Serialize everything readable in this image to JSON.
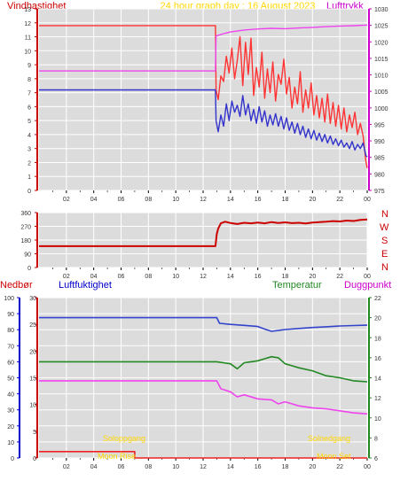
{
  "header": {
    "left": "Vindhastighet",
    "center": "24 hour graph day : 16 August 2023",
    "right": "Lufttrykk"
  },
  "compass_labels": [
    "N",
    "W",
    "S",
    "E",
    "N"
  ],
  "panel3_headers": {
    "nedbor": "Nedbør",
    "luftfuktighet": "Luftfuktighet",
    "temperatur": "Temperatur",
    "duggpunkt": "Duggpunkt"
  },
  "astro": {
    "sunrise_label": "Soloppgang",
    "moonrise_label": "Moon Rise",
    "sunset_label": "Solnedgang",
    "moonset_label": "Moon Set"
  },
  "colors": {
    "background": "#ffffff",
    "panel_bg": "#dcdcdc",
    "header_red": "#cc0000",
    "header_yellow": "#ffd700",
    "header_magenta": "#cc00cc",
    "wind_gust": "#ff3333",
    "wind_avg": "#3333cc",
    "pressure": "#ee44ee",
    "direction": "#cc0000",
    "humidity": "#3344cc",
    "temperature": "#228822",
    "dewpoint": "#ee44ee",
    "rain": "#ee2222",
    "left_axis_wind": "#cc0000",
    "right_axis_pressure": "#cc00cc",
    "rain_axis": "#0000cc",
    "humidity_axis": "#cc0000",
    "temp_axis": "#228822"
  },
  "chart_data": [
    {
      "id": "wind_pressure",
      "type": "line",
      "x_ticks": [
        "02",
        "04",
        "06",
        "08",
        "10",
        "12",
        "14",
        "16",
        "18",
        "20",
        "22",
        "00"
      ],
      "xlim": [
        0,
        24
      ],
      "ylim_left": [
        0,
        13
      ],
      "yticks_left": [
        0,
        1,
        2,
        3,
        4,
        5,
        6,
        7,
        8,
        9,
        10,
        11,
        12,
        13
      ],
      "ylim_right": [
        975,
        1030
      ],
      "yticks_right": [
        975,
        980,
        985,
        990,
        995,
        1000,
        1005,
        1010,
        1015,
        1020,
        1025,
        1030
      ],
      "series": [
        {
          "key": "gust",
          "axis": "left",
          "points": [
            [
              0,
              11.8
            ],
            [
              12.9,
              11.8
            ],
            [
              12.95,
              7.2
            ],
            [
              13.1,
              6.5
            ],
            [
              13.3,
              8.2
            ],
            [
              13.5,
              7.8
            ],
            [
              13.7,
              9.6
            ],
            [
              13.9,
              8.4
            ],
            [
              14.1,
              10.2
            ],
            [
              14.3,
              8.0
            ],
            [
              14.5,
              9.3
            ],
            [
              14.7,
              11.0
            ],
            [
              14.9,
              7.5
            ],
            [
              15.1,
              10.6
            ],
            [
              15.3,
              8.3
            ],
            [
              15.5,
              10.9
            ],
            [
              15.7,
              6.8
            ],
            [
              15.9,
              8.8
            ],
            [
              16.1,
              7.4
            ],
            [
              16.3,
              9.9
            ],
            [
              16.5,
              6.6
            ],
            [
              16.7,
              8.7
            ],
            [
              16.9,
              7.0
            ],
            [
              17.1,
              9.2
            ],
            [
              17.3,
              6.4
            ],
            [
              17.5,
              8.3
            ],
            [
              17.7,
              7.6
            ],
            [
              17.9,
              9.4
            ],
            [
              18.1,
              6.9
            ],
            [
              18.3,
              8.1
            ],
            [
              18.5,
              5.9
            ],
            [
              18.7,
              7.4
            ],
            [
              18.9,
              6.2
            ],
            [
              19.1,
              8.5
            ],
            [
              19.3,
              5.6
            ],
            [
              19.5,
              7.2
            ],
            [
              19.7,
              5.9
            ],
            [
              19.9,
              7.7
            ],
            [
              20.1,
              5.4
            ],
            [
              20.3,
              6.8
            ],
            [
              20.5,
              5.2
            ],
            [
              20.7,
              6.6
            ],
            [
              20.9,
              4.9
            ],
            [
              21.1,
              6.9
            ],
            [
              21.3,
              4.8
            ],
            [
              21.5,
              6.3
            ],
            [
              21.7,
              4.6
            ],
            [
              21.9,
              6.1
            ],
            [
              22.1,
              4.4
            ],
            [
              22.3,
              5.9
            ],
            [
              22.5,
              4.2
            ],
            [
              22.7,
              5.4
            ],
            [
              22.9,
              4.5
            ],
            [
              23.1,
              5.6
            ],
            [
              23.3,
              4.0
            ],
            [
              23.5,
              4.8
            ],
            [
              23.7,
              3.9
            ],
            [
              23.9,
              2.1
            ],
            [
              24,
              1.6
            ]
          ]
        },
        {
          "key": "average",
          "axis": "left",
          "points": [
            [
              0,
              7.2
            ],
            [
              12.9,
              7.2
            ],
            [
              12.95,
              5.0
            ],
            [
              13.1,
              4.2
            ],
            [
              13.3,
              5.4
            ],
            [
              13.5,
              4.6
            ],
            [
              13.7,
              6.2
            ],
            [
              13.9,
              5.0
            ],
            [
              14.1,
              6.4
            ],
            [
              14.3,
              5.6
            ],
            [
              14.5,
              6.1
            ],
            [
              14.7,
              5.3
            ],
            [
              14.9,
              6.8
            ],
            [
              15.1,
              5.4
            ],
            [
              15.3,
              6.2
            ],
            [
              15.5,
              5.0
            ],
            [
              15.7,
              5.8
            ],
            [
              15.9,
              4.8
            ],
            [
              16.1,
              6.0
            ],
            [
              16.3,
              4.9
            ],
            [
              16.5,
              5.7
            ],
            [
              16.7,
              4.6
            ],
            [
              16.9,
              5.4
            ],
            [
              17.1,
              4.7
            ],
            [
              17.3,
              5.5
            ],
            [
              17.5,
              4.6
            ],
            [
              17.7,
              5.3
            ],
            [
              17.9,
              4.4
            ],
            [
              18.1,
              5.2
            ],
            [
              18.3,
              4.3
            ],
            [
              18.5,
              4.9
            ],
            [
              18.7,
              4.1
            ],
            [
              18.9,
              4.8
            ],
            [
              19.1,
              4.0
            ],
            [
              19.3,
              4.6
            ],
            [
              19.5,
              3.8
            ],
            [
              19.7,
              4.4
            ],
            [
              19.9,
              3.7
            ],
            [
              20.1,
              4.3
            ],
            [
              20.3,
              3.6
            ],
            [
              20.5,
              4.1
            ],
            [
              20.7,
              3.5
            ],
            [
              20.9,
              4.0
            ],
            [
              21.1,
              3.4
            ],
            [
              21.3,
              3.9
            ],
            [
              21.5,
              3.3
            ],
            [
              21.7,
              3.7
            ],
            [
              21.9,
              3.2
            ],
            [
              22.1,
              3.6
            ],
            [
              22.3,
              3.1
            ],
            [
              22.5,
              3.4
            ],
            [
              22.7,
              3.0
            ],
            [
              22.9,
              3.5
            ],
            [
              23.1,
              2.9
            ],
            [
              23.3,
              3.3
            ],
            [
              23.5,
              3.0
            ],
            [
              23.7,
              3.4
            ],
            [
              23.9,
              2.5
            ],
            [
              24,
              2.4
            ]
          ]
        },
        {
          "key": "pressure",
          "axis": "right",
          "points": [
            [
              0,
              1011.2
            ],
            [
              12.9,
              1011.2
            ],
            [
              12.95,
              1021.8
            ],
            [
              13.5,
              1022.5
            ],
            [
              14.0,
              1023.0
            ],
            [
              15.0,
              1023.6
            ],
            [
              16.0,
              1023.9
            ],
            [
              17.0,
              1024.1
            ],
            [
              18.0,
              1024.0
            ],
            [
              19.0,
              1024.2
            ],
            [
              20.0,
              1024.4
            ],
            [
              21.0,
              1024.6
            ],
            [
              22.0,
              1024.8
            ],
            [
              23.0,
              1024.9
            ],
            [
              24,
              1025.1
            ]
          ]
        }
      ]
    },
    {
      "id": "wind_direction",
      "type": "scatter",
      "x_ticks": [
        "02",
        "04",
        "06",
        "08",
        "10",
        "12",
        "14",
        "16",
        "18",
        "20",
        "22",
        "00"
      ],
      "xlim": [
        0,
        24
      ],
      "ylim": [
        0,
        360
      ],
      "yticks": [
        0,
        90,
        180,
        270,
        360
      ],
      "series": [
        {
          "key": "direction",
          "points": [
            [
              0,
              140
            ],
            [
              12.9,
              140
            ],
            [
              13.0,
              220
            ],
            [
              13.1,
              255
            ],
            [
              13.3,
              290
            ],
            [
              13.6,
              300
            ],
            [
              14.0,
              292
            ],
            [
              14.5,
              285
            ],
            [
              15.0,
              293
            ],
            [
              15.5,
              290
            ],
            [
              16.0,
              295
            ],
            [
              16.5,
              290
            ],
            [
              17.0,
              298
            ],
            [
              17.5,
              292
            ],
            [
              18.0,
              296
            ],
            [
              18.5,
              291
            ],
            [
              19.0,
              293
            ],
            [
              19.5,
              289
            ],
            [
              20.0,
              295
            ],
            [
              20.5,
              298
            ],
            [
              21.0,
              300
            ],
            [
              21.5,
              304
            ],
            [
              22.0,
              302
            ],
            [
              22.5,
              308
            ],
            [
              23.0,
              305
            ],
            [
              23.5,
              312
            ],
            [
              24,
              315
            ]
          ]
        }
      ]
    },
    {
      "id": "humidity_temp_dew_rain",
      "type": "line",
      "x_ticks": [
        "02",
        "04",
        "06",
        "08",
        "10",
        "12",
        "14",
        "16",
        "18",
        "20",
        "22",
        "00"
      ],
      "xlim": [
        0,
        24
      ],
      "ylim_rain": [
        0,
        100
      ],
      "yticks_rain": [
        0,
        10,
        20,
        30,
        40,
        50,
        60,
        70,
        80,
        90,
        100
      ],
      "ylim_humidity": [
        0,
        30
      ],
      "yticks_humidity": [
        0,
        5,
        10,
        15,
        20,
        25,
        30
      ],
      "ylim_temp": [
        6,
        22
      ],
      "yticks_temp": [
        6,
        8,
        10,
        12,
        14,
        16,
        18,
        20,
        22
      ],
      "series": [
        {
          "key": "humidity",
          "axis": "left",
          "points": [
            [
              0,
              87.5
            ],
            [
              13.0,
              87.5
            ],
            [
              13.2,
              84.0
            ],
            [
              14.0,
              83.3
            ],
            [
              15.0,
              82.7
            ],
            [
              16.0,
              82.0
            ],
            [
              16.5,
              80.4
            ],
            [
              17.0,
              79.0
            ],
            [
              17.5,
              79.5
            ],
            [
              18.0,
              80.1
            ],
            [
              19.0,
              80.8
            ],
            [
              20.0,
              81.4
            ],
            [
              21.0,
              81.8
            ],
            [
              22.0,
              82.3
            ],
            [
              23.0,
              82.6
            ],
            [
              24,
              82.8
            ]
          ]
        },
        {
          "key": "temperature",
          "axis": "right",
          "points": [
            [
              0,
              15.6
            ],
            [
              13.0,
              15.6
            ],
            [
              14.0,
              15.4
            ],
            [
              14.5,
              14.9
            ],
            [
              15.0,
              15.5
            ],
            [
              15.5,
              15.6
            ],
            [
              16.0,
              15.7
            ],
            [
              16.5,
              15.9
            ],
            [
              17.0,
              16.1
            ],
            [
              17.5,
              16.0
            ],
            [
              18.0,
              15.4
            ],
            [
              18.5,
              15.2
            ],
            [
              19.0,
              15.0
            ],
            [
              20.0,
              14.7
            ],
            [
              21.0,
              14.2
            ],
            [
              22.0,
              14.0
            ],
            [
              23.0,
              13.7
            ],
            [
              24,
              13.6
            ]
          ]
        },
        {
          "key": "dewpoint",
          "axis": "right",
          "points": [
            [
              0,
              13.7
            ],
            [
              13.0,
              13.7
            ],
            [
              13.3,
              12.9
            ],
            [
              14.0,
              12.6
            ],
            [
              14.5,
              12.1
            ],
            [
              15.0,
              12.3
            ],
            [
              16.0,
              11.9
            ],
            [
              17.0,
              11.8
            ],
            [
              17.5,
              11.4
            ],
            [
              18.0,
              11.6
            ],
            [
              19.0,
              11.2
            ],
            [
              20.0,
              11.0
            ],
            [
              21.0,
              10.9
            ],
            [
              22.0,
              10.7
            ],
            [
              23.0,
              10.5
            ],
            [
              24,
              10.4
            ]
          ]
        },
        {
          "key": "rain",
          "axis": "left",
          "points": [
            [
              0,
              4.0
            ],
            [
              7.0,
              4.0
            ],
            [
              7.0,
              0
            ],
            [
              24,
              0
            ]
          ]
        }
      ]
    }
  ]
}
